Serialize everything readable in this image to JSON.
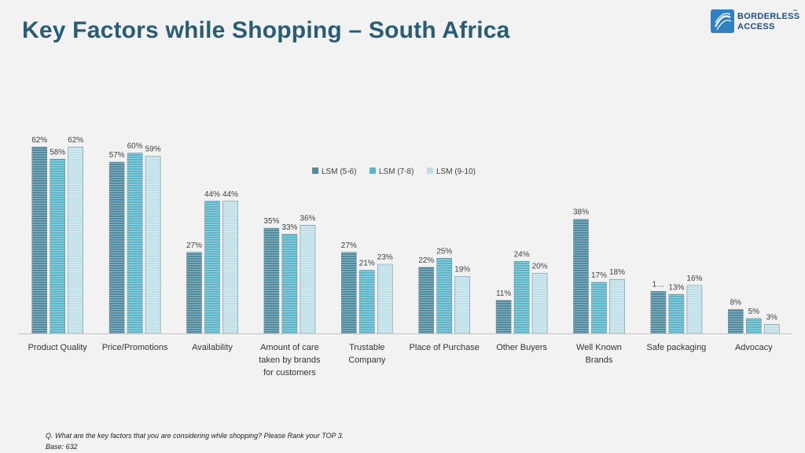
{
  "page": {
    "title": "Key Factors while Shopping – South Africa"
  },
  "logo": {
    "line1": "BORDERLESS",
    "line2": "ACCESS",
    "trademark": "™"
  },
  "footnote": {
    "question": "Q. What are the key factors that you are considering while shopping?  Please Rank your TOP 3.",
    "base": "Base: 632"
  },
  "chart_data": {
    "type": "bar",
    "categories": [
      [
        "Product Quality"
      ],
      [
        "Price/Promotions"
      ],
      [
        "Availability"
      ],
      [
        "Amount of care",
        "taken by brands",
        "for customers"
      ],
      [
        "Trustable",
        "Company"
      ],
      [
        "Place of Purchase"
      ],
      [
        "Other Buyers"
      ],
      [
        "Well Known",
        "Brands"
      ],
      [
        "Safe packaging"
      ],
      [
        "Advocacy"
      ]
    ],
    "series": [
      {
        "name": "LSM (5-6)",
        "color": "#4f8a9e",
        "values": [
          62,
          57,
          27,
          35,
          27,
          22,
          11,
          38,
          14,
          8
        ],
        "labels": [
          "62%",
          "57%",
          "27%",
          "35%",
          "27%",
          "22%",
          "11%",
          "38%",
          "1…",
          "8%"
        ]
      },
      {
        "name": "LSM (7-8)",
        "color": "#5db5c9",
        "values": [
          58,
          60,
          44,
          33,
          21,
          25,
          24,
          17,
          13,
          5
        ],
        "labels": [
          "58%",
          "60%",
          "44%",
          "33%",
          "21%",
          "25%",
          "24%",
          "17%",
          "13%",
          "5%"
        ]
      },
      {
        "name": "LSM (9-10)",
        "color": "#bfe0e8",
        "values": [
          62,
          59,
          44,
          36,
          23,
          19,
          20,
          18,
          16,
          3
        ],
        "labels": [
          "62%",
          "59%",
          "44%",
          "36%",
          "23%",
          "19%",
          "20%",
          "18%",
          "16%",
          "3%"
        ]
      }
    ],
    "ylim": [
      0,
      62
    ],
    "legend_position": "top-center",
    "grid": false
  }
}
